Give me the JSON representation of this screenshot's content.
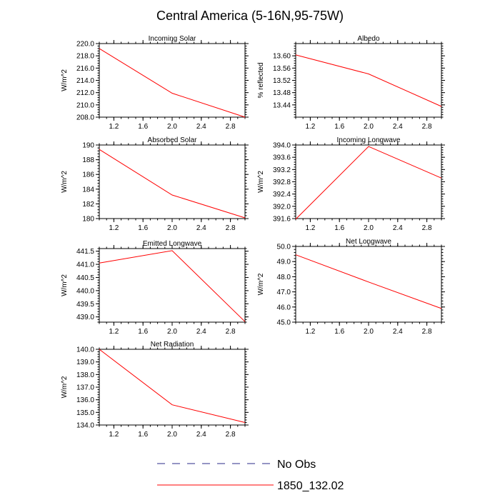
{
  "title": "Central America (5-16N,95-75W)",
  "colors": {
    "model": "#ff0000",
    "obs": "#2b2b8a",
    "axis": "#000000"
  },
  "legend": {
    "entries": [
      {
        "label": "No Obs",
        "style": "dashed",
        "color": "#2b2b8a"
      },
      {
        "label": "1850_132.02",
        "style": "solid",
        "color": "#ff0000"
      }
    ]
  },
  "chart_data": [
    {
      "type": "line",
      "title": "Incoming Solar",
      "ylabel": "W/m^2",
      "xlim": [
        1.0,
        3.0
      ],
      "ylim": [
        208.0,
        220.0
      ],
      "x_ticks": [
        "1.2",
        "1.6",
        "2.0",
        "2.4",
        "2.8"
      ],
      "y_ticks": [
        "208.0",
        "210.0",
        "212.0",
        "214.0",
        "216.0",
        "218.0",
        "220.0"
      ],
      "series": [
        {
          "name": "1850_132.02",
          "x": [
            1,
            2,
            3
          ],
          "values": [
            219.2,
            211.9,
            208.0
          ]
        }
      ]
    },
    {
      "type": "line",
      "title": "Albedo",
      "ylabel": "% reflected",
      "xlim": [
        1.0,
        3.0
      ],
      "ylim": [
        13.4,
        13.64
      ],
      "x_ticks": [
        "1.2",
        "1.6",
        "2.0",
        "2.4",
        "2.8"
      ],
      "y_ticks": [
        "13.44",
        "13.48",
        "13.52",
        "13.56",
        "13.60"
      ],
      "series": [
        {
          "name": "1850_132.02",
          "x": [
            1,
            2,
            3
          ],
          "values": [
            13.603,
            13.541,
            13.435
          ]
        }
      ]
    },
    {
      "type": "line",
      "title": "Absorbed Solar",
      "ylabel": "W/m^2",
      "xlim": [
        1.0,
        3.0
      ],
      "ylim": [
        180.0,
        190.0
      ],
      "x_ticks": [
        "1.2",
        "1.6",
        "2.0",
        "2.4",
        "2.8"
      ],
      "y_ticks": [
        "180",
        "182",
        "184",
        "186",
        "188",
        "190"
      ],
      "series": [
        {
          "name": "1850_132.02",
          "x": [
            1,
            2,
            3
          ],
          "values": [
            189.4,
            183.2,
            180.1
          ]
        }
      ]
    },
    {
      "type": "line",
      "title": "Incoming Longwave",
      "ylabel": "W/m^2",
      "xlim": [
        1.0,
        3.0
      ],
      "ylim": [
        391.6,
        394.0
      ],
      "x_ticks": [
        "1.2",
        "1.6",
        "2.0",
        "2.4",
        "2.8"
      ],
      "y_ticks": [
        "391.6",
        "392.0",
        "392.4",
        "392.8",
        "393.2",
        "393.6",
        "394.0"
      ],
      "series": [
        {
          "name": "1850_132.02",
          "x": [
            1,
            2,
            3
          ],
          "values": [
            391.58,
            393.95,
            392.92
          ]
        }
      ]
    },
    {
      "type": "line",
      "title": "Emitted Longwave",
      "ylabel": "W/m^2",
      "xlim": [
        1.0,
        3.0
      ],
      "ylim": [
        438.8,
        441.6
      ],
      "x_ticks": [
        "1.2",
        "1.6",
        "2.0",
        "2.4",
        "2.8"
      ],
      "y_ticks": [
        "439.0",
        "439.5",
        "440.0",
        "440.5",
        "441.0",
        "441.5"
      ],
      "series": [
        {
          "name": "1850_132.02",
          "x": [
            1,
            2,
            3
          ],
          "values": [
            441.05,
            441.52,
            438.82
          ]
        }
      ]
    },
    {
      "type": "line",
      "title": "Net Longwave",
      "ylabel": "W/m^2",
      "xlim": [
        1.0,
        3.0
      ],
      "ylim": [
        45.0,
        50.0
      ],
      "x_ticks": [
        "1.2",
        "1.6",
        "2.0",
        "2.4",
        "2.8"
      ],
      "y_ticks": [
        "45.0",
        "46.0",
        "47.0",
        "48.0",
        "49.0",
        "50.0"
      ],
      "series": [
        {
          "name": "1850_132.02",
          "x": [
            1,
            2,
            3
          ],
          "values": [
            49.45,
            47.65,
            45.9
          ]
        }
      ]
    },
    {
      "type": "line",
      "title": "Net Radiation",
      "ylabel": "W/m^2",
      "xlim": [
        1.0,
        3.0
      ],
      "ylim": [
        134.0,
        140.0
      ],
      "x_ticks": [
        "1.2",
        "1.6",
        "2.0",
        "2.4",
        "2.8"
      ],
      "y_ticks": [
        "134.0",
        "135.0",
        "136.0",
        "137.0",
        "138.0",
        "139.0",
        "140.0"
      ],
      "series": [
        {
          "name": "1850_132.02",
          "x": [
            1,
            2,
            3
          ],
          "values": [
            140.0,
            135.6,
            134.2
          ]
        }
      ]
    }
  ]
}
